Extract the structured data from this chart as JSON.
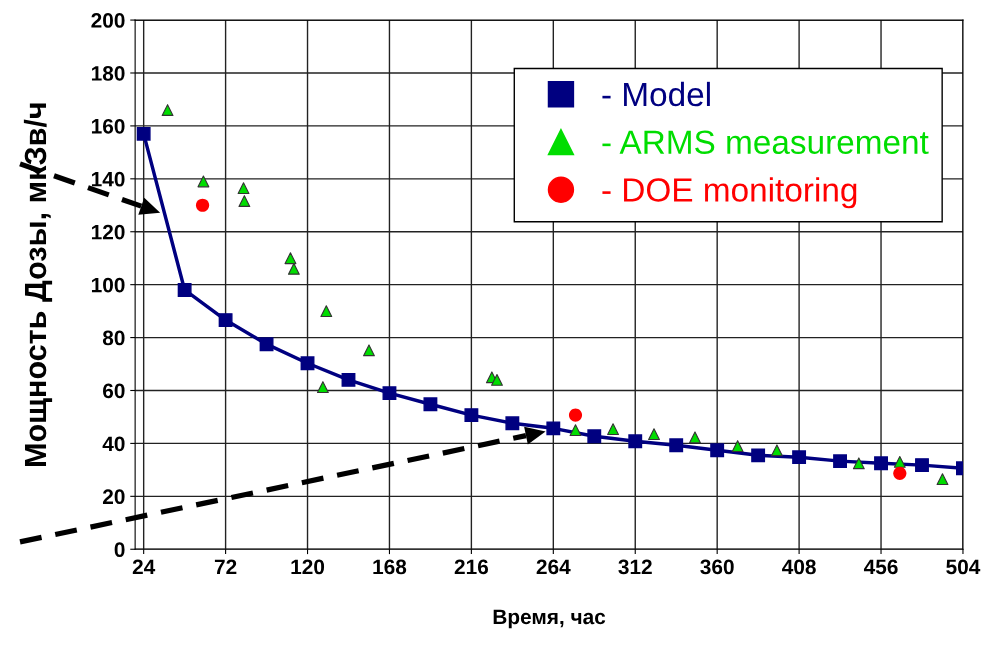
{
  "chart_data": {
    "type": "line",
    "xlabel": "Время, час",
    "ylabel": "Мощность Дозы, мкЗв/ч",
    "xlim": [
      19,
      504
    ],
    "xticks": [
      24,
      72,
      120,
      168,
      216,
      264,
      312,
      360,
      408,
      456,
      504
    ],
    "ylim": [
      0,
      200
    ],
    "yticks": [
      0,
      20,
      40,
      60,
      80,
      100,
      120,
      140,
      160,
      180,
      200
    ],
    "grid": true,
    "legend": "top right",
    "series": [
      {
        "name": "- Model",
        "marker": "square",
        "color": "#000080",
        "x": [
          24,
          48,
          72,
          96,
          120,
          144,
          168,
          192,
          216,
          240,
          264,
          288,
          312,
          336,
          360,
          384,
          408,
          432,
          456,
          480,
          504
        ],
        "values": [
          157,
          98,
          86.6,
          77.5,
          70.3,
          64,
          59,
          54.8,
          50.7,
          47.6,
          45.7,
          42.7,
          40.8,
          39.3,
          37.4,
          35.5,
          34.8,
          33.3,
          32.5,
          31.8,
          30.6
        ]
      },
      {
        "name": "- ARMS measurement",
        "type": "scatter",
        "marker": "triangle",
        "color": "#00dd00",
        "x": [
          38,
          59,
          82.5,
          83,
          110,
          112,
          131,
          129,
          156,
          228,
          231,
          277,
          299,
          323,
          347,
          372,
          395,
          443,
          467,
          492
        ],
        "values": [
          166,
          139,
          136.5,
          131.6,
          110,
          106,
          90,
          61.3,
          75.2,
          65,
          64,
          45,
          45.4,
          43.5,
          42.3,
          39,
          37.4,
          32.5,
          33,
          26.5
        ]
      },
      {
        "name": "- DOE monitoring",
        "type": "scatter",
        "marker": "circle",
        "color": "#ff0000",
        "x": [
          58.5,
          277,
          467
        ],
        "values": [
          130,
          50.7,
          28.7
        ]
      }
    ]
  }
}
